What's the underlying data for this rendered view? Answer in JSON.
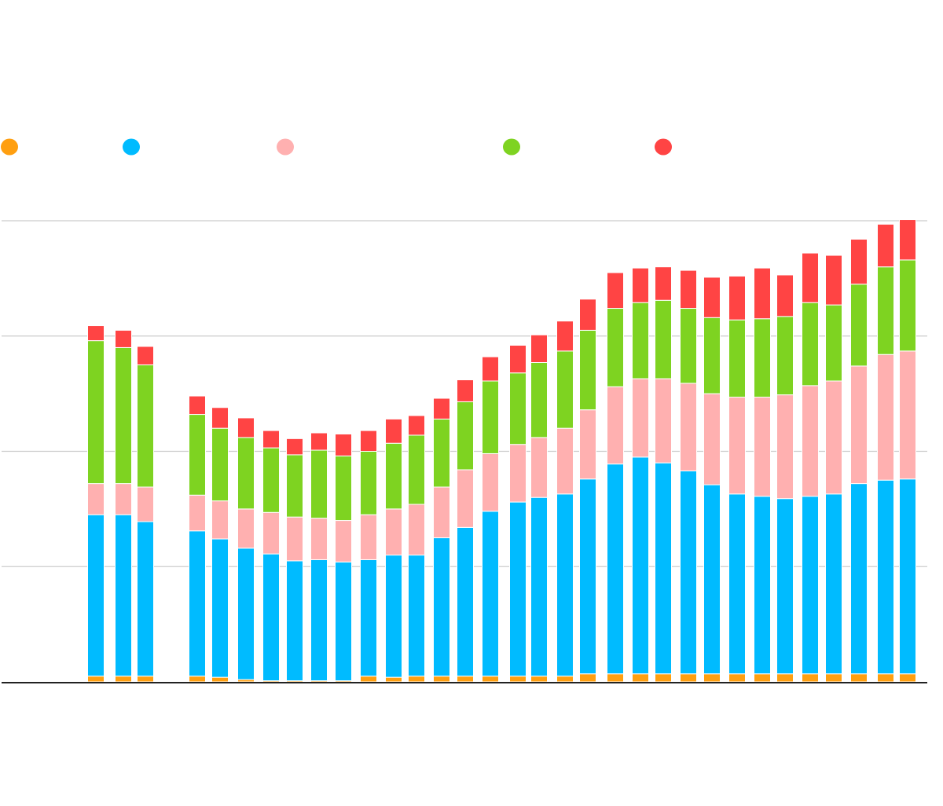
{
  "chart_data": {
    "type": "bar",
    "stacked": true,
    "ylim": [
      0,
      4
    ],
    "yticks": [
      0,
      1,
      2,
      3,
      4
    ],
    "grid": true,
    "legend_position": "top-left",
    "series_colors": [
      "#ff9f10",
      "#00bbff",
      "#ffb0b0",
      "#7ed321",
      "#ff4444"
    ],
    "series": [
      {
        "values": [
          0.05,
          0.05,
          0.05,
          0.05,
          0.04,
          0.02,
          0.01,
          0.01,
          0.01,
          0.01,
          0.05,
          0.04,
          0.05,
          0.05,
          0.05,
          0.05,
          0.05,
          0.05,
          0.05,
          0.07,
          0.07,
          0.07,
          0.07,
          0.07,
          0.07,
          0.07,
          0.07,
          0.07,
          0.07,
          0.07,
          0.07,
          0.07,
          0.07
        ]
      },
      {
        "values": [
          1.4,
          1.4,
          1.34,
          1.26,
          1.2,
          1.14,
          1.1,
          1.04,
          1.05,
          1.03,
          1.01,
          1.06,
          1.05,
          1.2,
          1.29,
          1.43,
          1.51,
          1.55,
          1.58,
          1.69,
          1.82,
          1.88,
          1.83,
          1.76,
          1.64,
          1.56,
          1.54,
          1.52,
          1.54,
          1.56,
          1.65,
          1.68,
          1.69
        ]
      },
      {
        "values": [
          0.27,
          0.27,
          0.3,
          0.31,
          0.33,
          0.34,
          0.36,
          0.38,
          0.36,
          0.36,
          0.39,
          0.4,
          0.44,
          0.44,
          0.5,
          0.5,
          0.5,
          0.52,
          0.57,
          0.6,
          0.67,
          0.68,
          0.73,
          0.76,
          0.79,
          0.84,
          0.86,
          0.9,
          0.96,
          0.98,
          1.02,
          1.09,
          1.11
        ]
      },
      {
        "values": [
          1.24,
          1.18,
          1.06,
          0.7,
          0.63,
          0.62,
          0.56,
          0.54,
          0.59,
          0.56,
          0.55,
          0.57,
          0.6,
          0.59,
          0.59,
          0.63,
          0.62,
          0.65,
          0.67,
          0.69,
          0.68,
          0.66,
          0.68,
          0.65,
          0.66,
          0.67,
          0.68,
          0.68,
          0.72,
          0.66,
          0.71,
          0.76,
          0.79
        ]
      },
      {
        "values": [
          0.13,
          0.15,
          0.16,
          0.16,
          0.18,
          0.17,
          0.15,
          0.14,
          0.15,
          0.19,
          0.18,
          0.21,
          0.17,
          0.18,
          0.19,
          0.21,
          0.24,
          0.24,
          0.26,
          0.27,
          0.31,
          0.3,
          0.29,
          0.33,
          0.35,
          0.38,
          0.44,
          0.36,
          0.43,
          0.43,
          0.39,
          0.37,
          0.35
        ]
      }
    ]
  }
}
